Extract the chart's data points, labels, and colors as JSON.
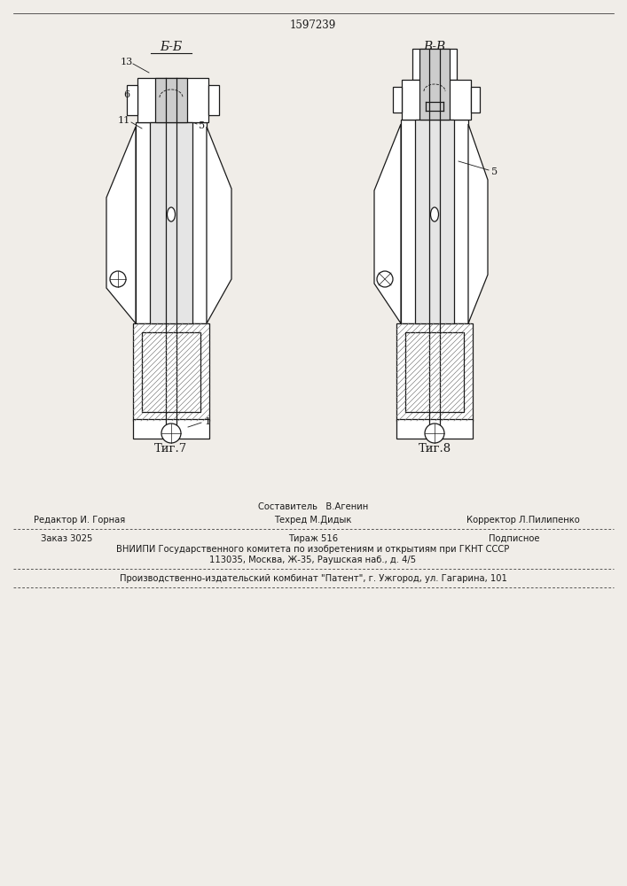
{
  "patent_number": "1597239",
  "fig7_label": "Τиг.7",
  "fig8_label": "Τиг.8",
  "section_bb": "Б-Б",
  "section_vv": "В-В",
  "bg_color": "#f0ede8",
  "line_color": "#1a1a1a",
  "footer_line1_left": "Редактор И. Горная",
  "footer_line1_center_top": "Составитель   В.Агенин",
  "footer_line1_center_bot": "Техред М.Дидык",
  "footer_line1_right": "Корректор Л.Пилипенко",
  "footer_line2_left": "Заказ 3025",
  "footer_line2_center": "Тираж 516",
  "footer_line2_right": "Подписное",
  "footer_line3": "ВНИИПИ Государственного комитета по изобретениям и открытиям при ГКНТ СССР",
  "footer_line4": "113035, Москва, Ж-35, Раушская наб., д. 4/5",
  "footer_line5": "Производственно-издательский комбинат \"Патент\", г. Ужгород, ул. Гагарина, 101"
}
